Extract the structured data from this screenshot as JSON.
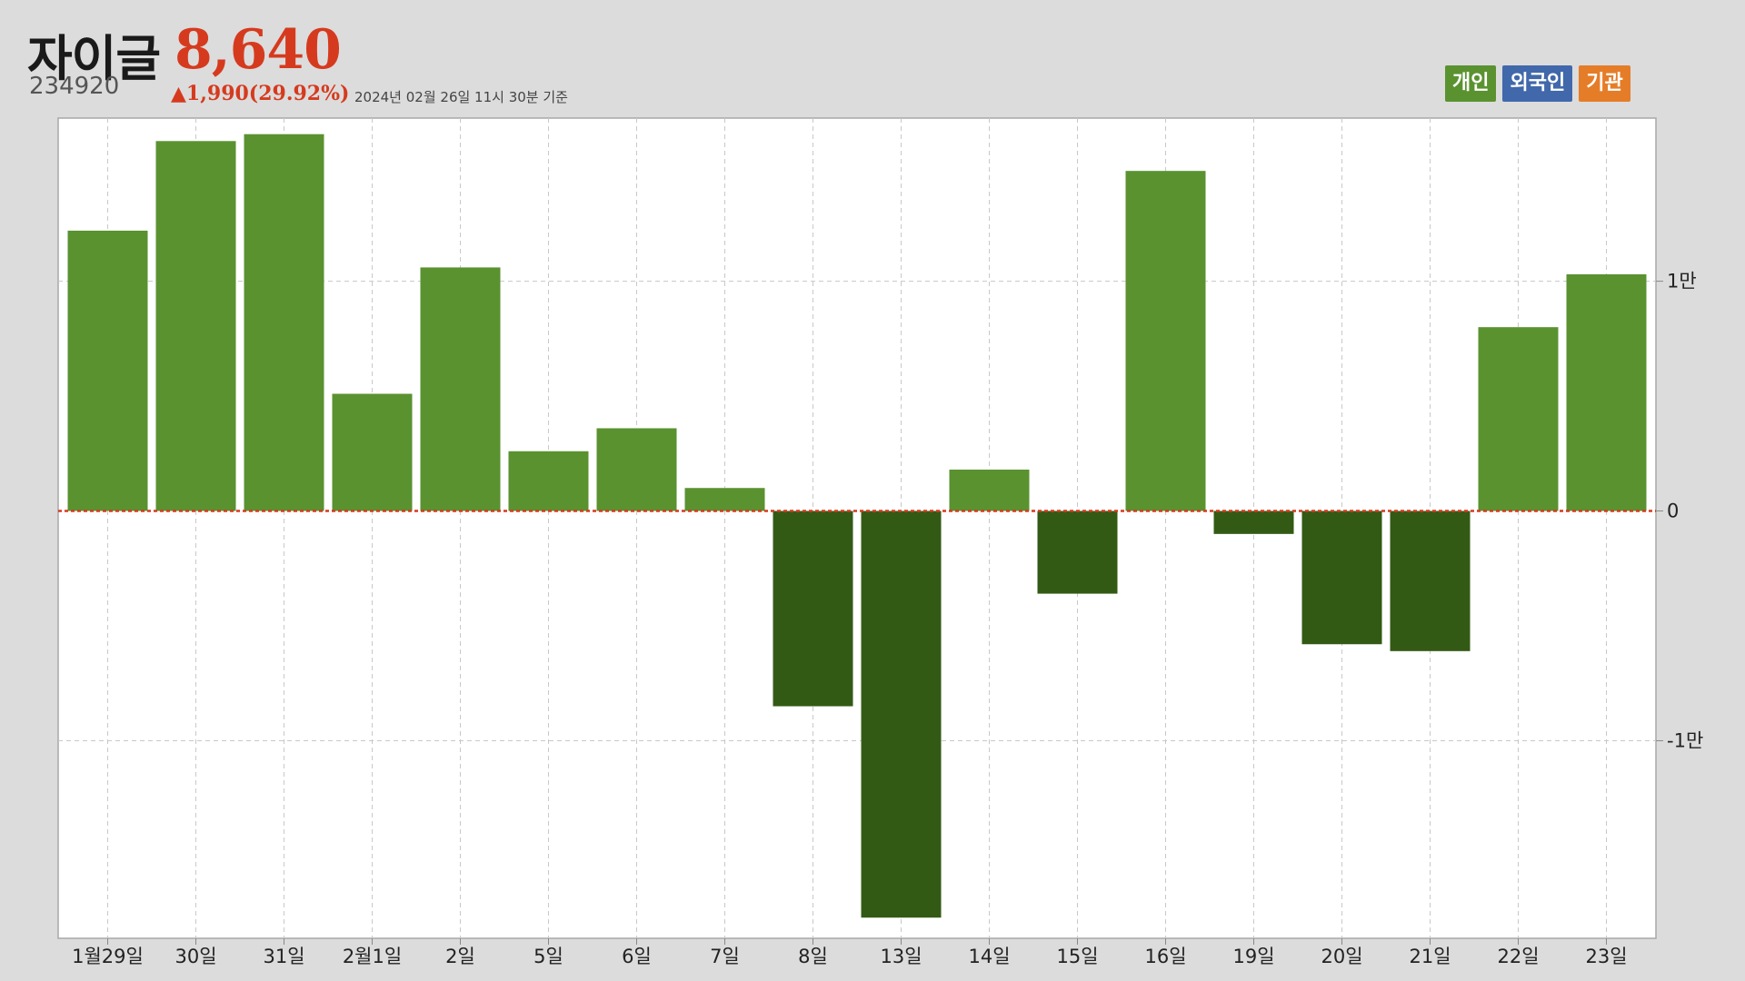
{
  "header": {
    "stock_name": "자이글",
    "price": "8,640",
    "code": "234920",
    "change": "▲1,990(29.92%)",
    "as_of": "2024년 02월 26일 11시 30분 기준"
  },
  "legend": [
    {
      "label": "개인",
      "color": "#5a9230"
    },
    {
      "label": "외국인",
      "color": "#4168ab"
    },
    {
      "label": "기관",
      "color": "#e57d28"
    }
  ],
  "colors": {
    "positive": "#5a9230",
    "negative": "#335a14",
    "zero_line": "#d63a1e",
    "grid": "#c8c8c8"
  },
  "chart_data": {
    "type": "bar",
    "series": [
      {
        "name": "개인",
        "values": [
          12200,
          16100,
          16400,
          5100,
          10600,
          2600,
          3600,
          1000,
          -8500,
          -17700,
          1800,
          -3600,
          14800,
          -1000,
          -5800,
          -6100,
          8000,
          10300
        ]
      }
    ],
    "categories": [
      "1월29일",
      "30일",
      "31일",
      "2월1일",
      "2일",
      "5일",
      "6일",
      "7일",
      "8일",
      "13일",
      "14일",
      "15일",
      "16일",
      "19일",
      "20일",
      "21일",
      "22일",
      "23일"
    ],
    "y_ticks": [
      {
        "value": 10000,
        "label": "1만"
      },
      {
        "value": 0,
        "label": "0"
      },
      {
        "value": -10000,
        "label": "-1만"
      }
    ],
    "ylim": [
      -18600,
      17100
    ],
    "grid": true,
    "legend_position": "top-right"
  }
}
